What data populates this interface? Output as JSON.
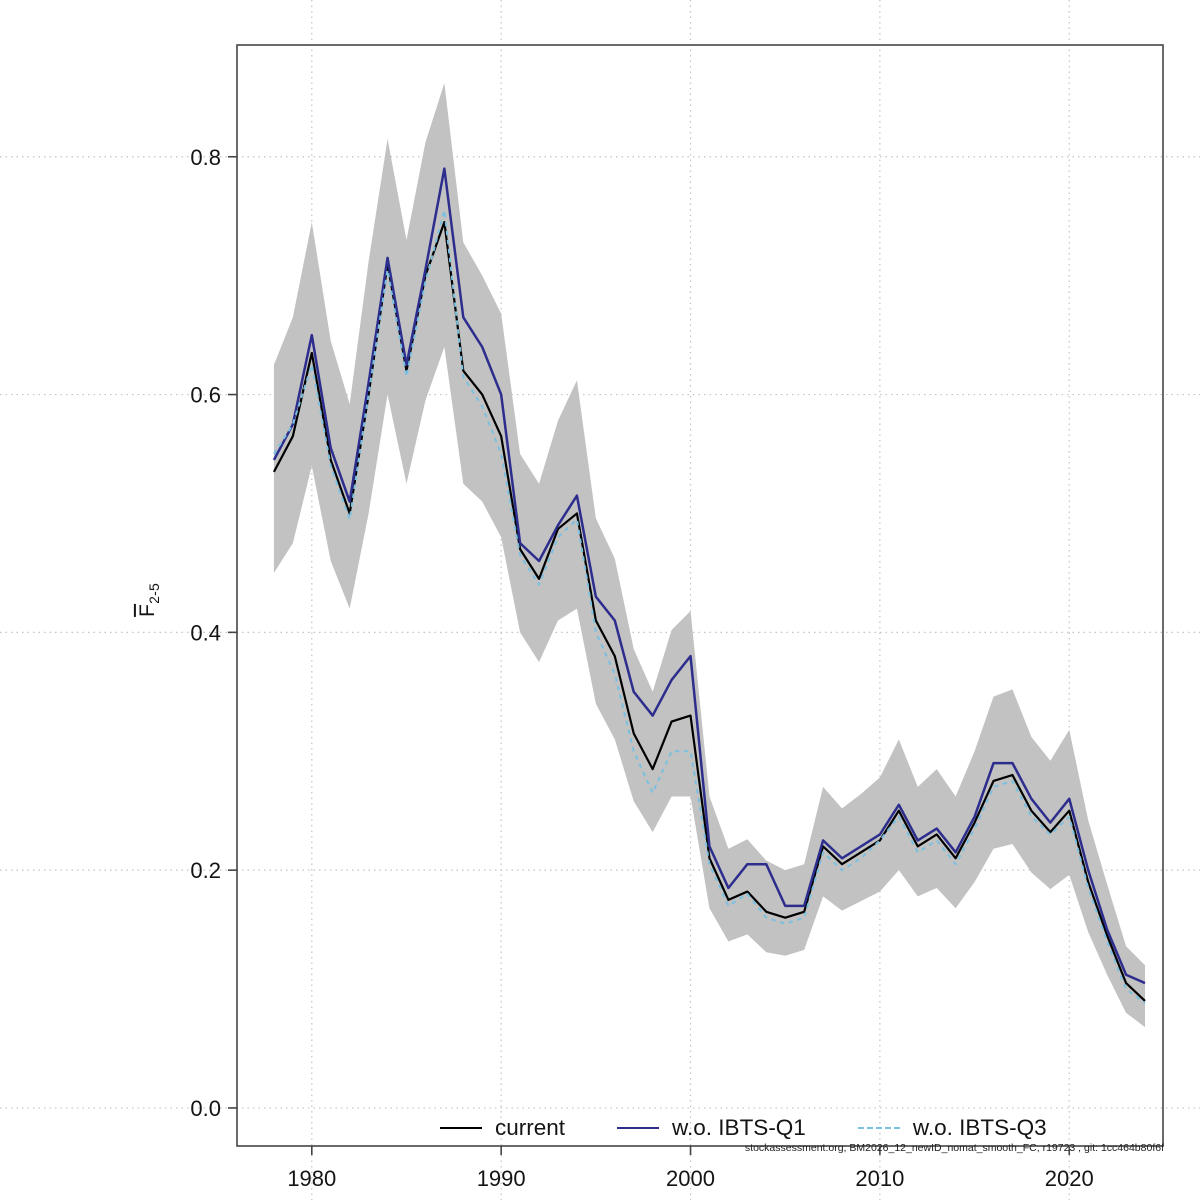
{
  "chart_data": {
    "type": "line",
    "title": "",
    "ylabel_main": "F",
    "ylabel_sub": "2-5",
    "xlabel": "",
    "xlim": [
      1976.05,
      2024.95
    ],
    "ylim": [
      -0.032,
      0.894
    ],
    "grid": true,
    "legend_position": "bottom-center-inside",
    "x_ticks": [
      1980,
      1990,
      2000,
      2010,
      2020
    ],
    "x_tick_labels": [
      "1980",
      "1990",
      "2000",
      "2010",
      "2020"
    ],
    "y_ticks": [
      0.0,
      0.2,
      0.4,
      0.6,
      0.8
    ],
    "y_tick_labels": [
      "0.0",
      "0.2",
      "0.4",
      "0.6",
      "0.8"
    ],
    "x": [
      1978,
      1979,
      1980,
      1981,
      1982,
      1983,
      1984,
      1985,
      1986,
      1987,
      1988,
      1989,
      1990,
      1991,
      1992,
      1993,
      1994,
      1995,
      1996,
      1997,
      1998,
      1999,
      2000,
      2001,
      2002,
      2003,
      2004,
      2005,
      2006,
      2007,
      2008,
      2009,
      2010,
      2011,
      2012,
      2013,
      2014,
      2015,
      2016,
      2017,
      2018,
      2019,
      2020,
      2021,
      2022,
      2023,
      2024
    ],
    "band": {
      "name": "confidence-band",
      "color": "#c2c2c2",
      "lower": [
        0.45,
        0.475,
        0.54,
        0.46,
        0.42,
        0.5,
        0.6,
        0.525,
        0.595,
        0.64,
        0.525,
        0.51,
        0.48,
        0.4,
        0.375,
        0.41,
        0.42,
        0.34,
        0.31,
        0.258,
        0.232,
        0.262,
        0.262,
        0.168,
        0.14,
        0.146,
        0.131,
        0.128,
        0.133,
        0.178,
        0.166,
        0.174,
        0.182,
        0.2,
        0.178,
        0.185,
        0.168,
        0.19,
        0.218,
        0.222,
        0.198,
        0.184,
        0.196,
        0.148,
        0.112,
        0.08,
        0.068
      ],
      "upper": [
        0.625,
        0.665,
        0.745,
        0.645,
        0.592,
        0.712,
        0.815,
        0.73,
        0.812,
        0.862,
        0.728,
        0.7,
        0.668,
        0.55,
        0.525,
        0.578,
        0.612,
        0.496,
        0.462,
        0.386,
        0.35,
        0.402,
        0.418,
        0.262,
        0.218,
        0.226,
        0.208,
        0.2,
        0.205,
        0.27,
        0.252,
        0.264,
        0.278,
        0.31,
        0.27,
        0.285,
        0.262,
        0.3,
        0.346,
        0.352,
        0.312,
        0.292,
        0.318,
        0.242,
        0.188,
        0.136,
        0.12
      ]
    },
    "series": [
      {
        "name": "current",
        "color": "#000000",
        "dash": "none",
        "width": 2.2,
        "values": [
          0.535,
          0.565,
          0.635,
          0.545,
          0.5,
          0.6,
          0.71,
          0.62,
          0.7,
          0.745,
          0.62,
          0.6,
          0.565,
          0.47,
          0.445,
          0.487,
          0.5,
          0.41,
          0.38,
          0.315,
          0.285,
          0.325,
          0.33,
          0.21,
          0.175,
          0.182,
          0.165,
          0.16,
          0.165,
          0.22,
          0.205,
          0.215,
          0.225,
          0.25,
          0.22,
          0.23,
          0.21,
          0.24,
          0.275,
          0.28,
          0.25,
          0.232,
          0.25,
          0.19,
          0.145,
          0.105,
          0.09
        ]
      },
      {
        "name": "w.o. IBTS-Q1",
        "color": "#2d2d8e",
        "dash": "none",
        "width": 2.5,
        "values": [
          0.545,
          0.575,
          0.65,
          0.555,
          0.51,
          0.61,
          0.715,
          0.625,
          0.705,
          0.79,
          0.665,
          0.64,
          0.6,
          0.475,
          0.46,
          0.49,
          0.515,
          0.43,
          0.41,
          0.35,
          0.33,
          0.36,
          0.38,
          0.22,
          0.185,
          0.205,
          0.205,
          0.17,
          0.17,
          0.225,
          0.21,
          0.22,
          0.23,
          0.255,
          0.225,
          0.235,
          0.215,
          0.245,
          0.29,
          0.29,
          0.26,
          0.24,
          0.26,
          0.2,
          0.15,
          0.112,
          0.105
        ]
      },
      {
        "name": "w.o. IBTS-Q3",
        "color": "#7cc0e0",
        "dash": "4.5 4.5",
        "width": 2.0,
        "values": [
          0.55,
          0.575,
          0.625,
          0.54,
          0.495,
          0.6,
          0.705,
          0.615,
          0.695,
          0.755,
          0.615,
          0.59,
          0.55,
          0.465,
          0.44,
          0.48,
          0.495,
          0.4,
          0.365,
          0.3,
          0.265,
          0.3,
          0.3,
          0.205,
          0.17,
          0.18,
          0.16,
          0.155,
          0.16,
          0.215,
          0.2,
          0.21,
          0.225,
          0.245,
          0.215,
          0.225,
          0.205,
          0.235,
          0.27,
          0.275,
          0.245,
          0.23,
          0.245,
          0.185,
          0.14,
          0.1,
          0.088
        ]
      }
    ],
    "annotation": "stockassessment.org, BM2026_12_newID_nomat_smooth_FC, r19723 , git: 1cc464b80f6f",
    "colors": {
      "grid": "#c3c3c3",
      "frame": "#454545",
      "band": "#c2c2c2"
    }
  }
}
